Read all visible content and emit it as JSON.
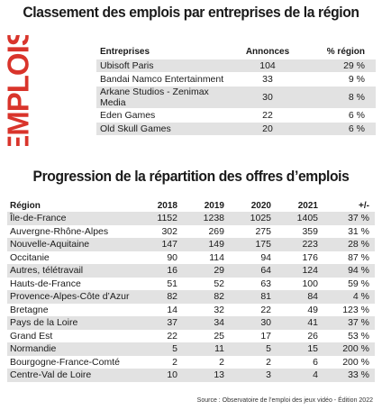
{
  "title1": "Classement des emplois par entreprises de la région",
  "side_label": "EMPLOIS",
  "colors": {
    "accent": "#d9342b",
    "row_shade": "#e2e2e2"
  },
  "table1": {
    "headers": [
      "Entreprises",
      "Annonces",
      "% région"
    ],
    "rows": [
      {
        "name": "Ubisoft Paris",
        "annonces": "104",
        "pct": "29 %"
      },
      {
        "name": "Bandai Namco Entertainment",
        "annonces": "33",
        "pct": "9 %"
      },
      {
        "name": "Arkane Studios - Zenimax Media",
        "annonces": "30",
        "pct": "8 %"
      },
      {
        "name": "Eden Games",
        "annonces": "22",
        "pct": "6 %"
      },
      {
        "name": "Old Skull Games",
        "annonces": "20",
        "pct": "6 %"
      }
    ]
  },
  "title2": "Progression de la répartition des offres d’emplois",
  "table2": {
    "headers": [
      "Région",
      "2018",
      "2019",
      "2020",
      "2021",
      "+/-"
    ],
    "rows": [
      [
        "Île-de-France",
        "1152",
        "1238",
        "1025",
        "1405",
        "37 %"
      ],
      [
        "Auvergne-Rhône-Alpes",
        "302",
        "269",
        "275",
        "359",
        "31 %"
      ],
      [
        "Nouvelle-Aquitaine",
        "147",
        "149",
        "175",
        "223",
        "28 %"
      ],
      [
        "Occitanie",
        "90",
        "114",
        "94",
        "176",
        "87 %"
      ],
      [
        "Autres, télétravail",
        "16",
        "29",
        "64",
        "124",
        "94 %"
      ],
      [
        "Hauts-de-France",
        "51",
        "52",
        "63",
        "100",
        "59 %"
      ],
      [
        "Provence-Alpes-Côte d’Azur",
        "82",
        "82",
        "81",
        "84",
        "4 %"
      ],
      [
        "Bretagne",
        "14",
        "32",
        "22",
        "49",
        "123 %"
      ],
      [
        "Pays de la Loire",
        "37",
        "34",
        "30",
        "41",
        "37 %"
      ],
      [
        "Grand Est",
        "22",
        "25",
        "17",
        "26",
        "53 %"
      ],
      [
        "Normandie",
        "5",
        "11",
        "5",
        "15",
        "200 %"
      ],
      [
        "Bourgogne-France-Comté",
        "2",
        "2",
        "2",
        "6",
        "200 %"
      ],
      [
        "Centre-Val de Loire",
        "10",
        "13",
        "3",
        "4",
        "33 %"
      ]
    ]
  },
  "source": "Source : Observatoire de l’emploi des jeux vidéo - Édition 2022"
}
